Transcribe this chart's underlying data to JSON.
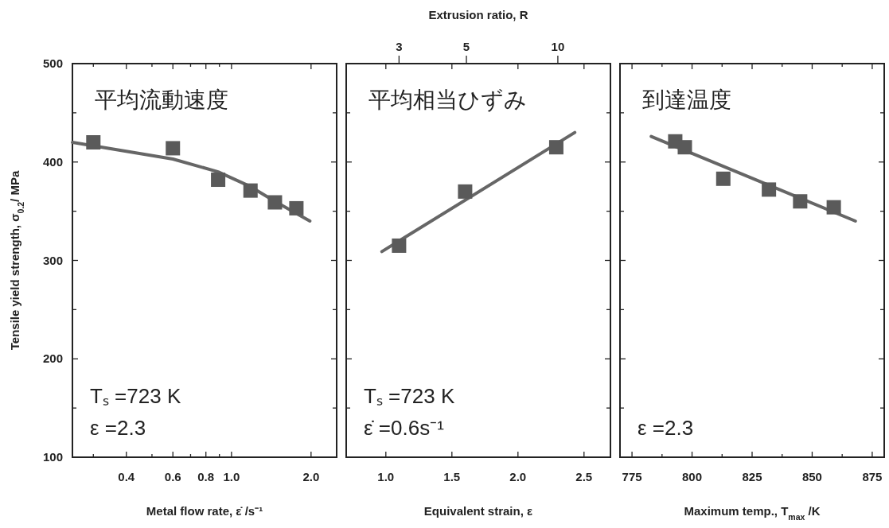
{
  "chart_data": [
    {
      "type": "scatter",
      "title": "平均流動速度",
      "ylabel": "Tensile yield strength, σ$_{0.2}$/ MPa",
      "xlabel": "Metal flow rate, ε̇ /s⁻¹",
      "log": "x",
      "xlim": [
        0.25,
        2.5
      ],
      "xticks": [
        {
          "value": 0.3,
          "label": null
        },
        0.4,
        {
          "value": 0.5,
          "label": null
        },
        0.6,
        {
          "value": 0.7,
          "label": null
        },
        0.8,
        {
          "value": 0.9,
          "label": null
        },
        {
          "value": 1,
          "label": "1.0"
        },
        {
          "value": 2,
          "label": "2.0"
        }
      ],
      "ylim": [
        100,
        500
      ],
      "yticks": [
        100,
        {
          "value": 150,
          "label": null
        },
        200,
        {
          "value": 250,
          "label": null
        },
        300,
        {
          "value": 350,
          "label": null
        },
        400,
        {
          "value": 450,
          "label": null
        },
        500
      ],
      "annotations": [
        "Tₛ =723 K",
        "ε =2.3"
      ],
      "series": [
        {
          "marker": "square",
          "color": "#5a5a5a",
          "x": [
            0.3,
            0.6,
            0.89,
            1.18,
            1.46,
            1.76
          ],
          "values": [
            420,
            414,
            382,
            371,
            359,
            353
          ]
        },
        {
          "type": "line",
          "marker": "none",
          "color": "#666666",
          "x": [
            0.25,
            0.6,
            0.89,
            1.18,
            1.46,
            1.98
          ],
          "values": [
            420,
            403,
            390,
            375,
            360,
            340
          ]
        }
      ]
    },
    {
      "type": "scatter",
      "title": "平均相当ひずみ",
      "xlabel": "Equivalent strain, ε",
      "x2label": "Extrusion ratio, R",
      "tick_labels": "x",
      "xlim": [
        0.7,
        2.7
      ],
      "xticks": [
        {
          "value": 1,
          "label": "1.0"
        },
        1.5,
        {
          "value": 2,
          "label": "2.0"
        },
        2.5
      ],
      "x2lim": [
        2.01,
        14.9
      ],
      "x2ticks": [
        3,
        5,
        10
      ],
      "log": "x2",
      "ylim": [
        100,
        500
      ],
      "yticks": [
        100,
        {
          "value": 150,
          "label": null
        },
        200,
        {
          "value": 250,
          "label": null
        },
        300,
        {
          "value": 350,
          "label": null
        },
        400,
        {
          "value": 450,
          "label": null
        },
        500
      ],
      "annotations": [
        "Tₛ =723 K",
        "ε̇ =0.6s⁻¹"
      ],
      "series": [
        {
          "marker": "square",
          "color": "#5a5a5a",
          "x": [
            1.1,
            1.6,
            2.29
          ],
          "values": [
            315,
            370,
            415
          ]
        },
        {
          "type": "line",
          "marker": "none",
          "color": "#666666",
          "x": [
            0.97,
            2.43
          ],
          "values": [
            309,
            430
          ]
        }
      ]
    },
    {
      "type": "scatter",
      "title": "到達温度",
      "xlabel": "Maximum temp., T$_{max}$ /K",
      "tick_labels": "x",
      "xlim": [
        770,
        880
      ],
      "xticks": [
        775,
        {
          "value": 787.5,
          "label": null
        },
        800,
        {
          "value": 812.5,
          "label": null
        },
        825,
        {
          "value": 837.5,
          "label": null
        },
        850,
        {
          "value": 862.5,
          "label": null
        },
        875
      ],
      "ylim": [
        100,
        500
      ],
      "yticks": [
        100,
        {
          "value": 150,
          "label": null
        },
        200,
        {
          "value": 250,
          "label": null
        },
        300,
        {
          "value": 350,
          "label": null
        },
        400,
        {
          "value": 450,
          "label": null
        },
        500
      ],
      "annotations": [
        "ε =2.3"
      ],
      "series": [
        {
          "marker": "square",
          "color": "#5a5a5a",
          "x": [
            793,
            797,
            813,
            832,
            845,
            859
          ],
          "values": [
            421,
            415,
            383,
            372,
            360,
            354
          ]
        },
        {
          "type": "line",
          "marker": "none",
          "color": "#666666",
          "x": [
            783,
            868
          ],
          "values": [
            426,
            340
          ]
        }
      ]
    }
  ]
}
